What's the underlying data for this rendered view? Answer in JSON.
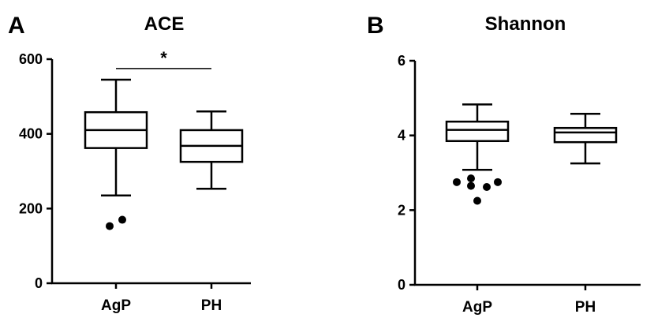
{
  "chart_data": [
    {
      "type": "box",
      "panel": "A",
      "title": "ACE",
      "xlabel": "",
      "ylabel": "",
      "ylim": [
        0,
        600
      ],
      "yticks": [
        0,
        200,
        400,
        600
      ],
      "categories": [
        "AgP",
        "PH"
      ],
      "boxes": [
        {
          "category": "AgP",
          "whisker_low": 235,
          "q1": 362,
          "median": 410,
          "q3": 458,
          "whisker_high": 545,
          "outliers": [
            153,
            170
          ]
        },
        {
          "category": "PH",
          "whisker_low": 253,
          "q1": 325,
          "median": 368,
          "q3": 410,
          "whisker_high": 460,
          "outliers": []
        }
      ],
      "significance": {
        "between": [
          "AgP",
          "PH"
        ],
        "label": "*",
        "y": 575
      },
      "grid": false,
      "legend": "none"
    },
    {
      "type": "box",
      "panel": "B",
      "title": "Shannon",
      "xlabel": "",
      "ylabel": "",
      "ylim": [
        0,
        6
      ],
      "yticks": [
        0,
        2,
        4,
        6
      ],
      "categories": [
        "AgP",
        "PH"
      ],
      "boxes": [
        {
          "category": "AgP",
          "whisker_low": 3.08,
          "q1": 3.85,
          "median": 4.15,
          "q3": 4.37,
          "whisker_high": 4.83,
          "outliers": [
            2.75,
            2.85,
            2.65,
            2.62,
            2.75,
            2.25
          ]
        },
        {
          "category": "PH",
          "whisker_low": 3.25,
          "q1": 3.82,
          "median": 4.08,
          "q3": 4.2,
          "whisker_high": 4.58,
          "outliers": []
        }
      ],
      "grid": false,
      "legend": "none"
    }
  ]
}
